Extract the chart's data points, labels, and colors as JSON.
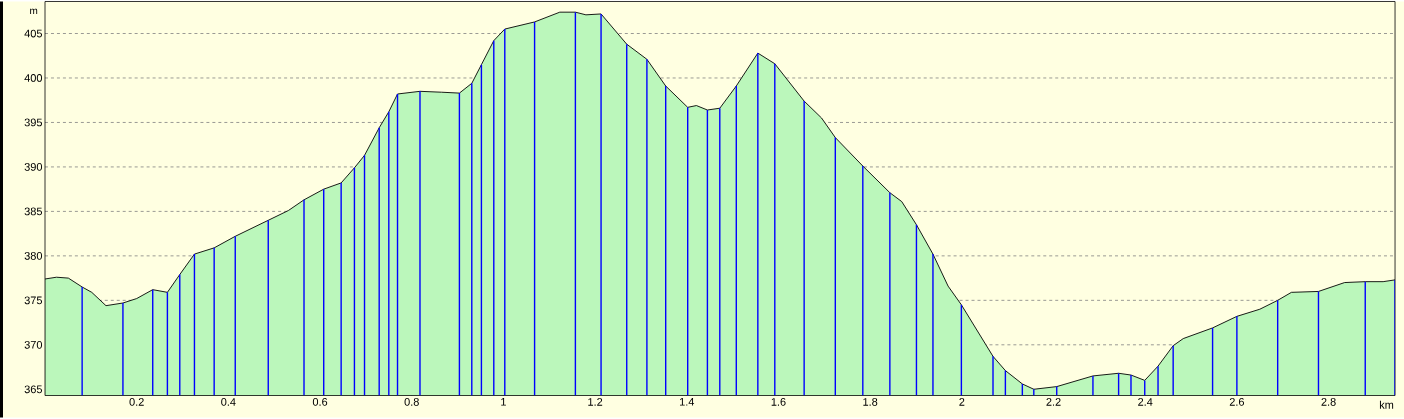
{
  "chart_data": {
    "type": "area",
    "xlabel": "km",
    "ylabel": "m",
    "xlim": [
      0,
      2.945
    ],
    "ylim": [
      364.3,
      408.6
    ],
    "xticks": [
      0.2,
      0.4,
      0.6,
      0.8,
      1,
      1.2,
      1.4,
      1.6,
      1.8,
      2,
      2.2,
      2.4,
      2.6,
      2.8
    ],
    "yticks": [
      365,
      370,
      375,
      380,
      385,
      390,
      395,
      400,
      405
    ],
    "grid": "y",
    "series": [
      {
        "color": "#bbf7bb",
        "x": [
          0,
          0.025,
          0.051,
          0.081,
          0.102,
          0.133,
          0.17,
          0.2,
          0.235,
          0.267,
          0.294,
          0.326,
          0.369,
          0.415,
          0.487,
          0.531,
          0.565,
          0.608,
          0.646,
          0.675,
          0.697,
          0.729,
          0.75,
          0.769,
          0.818,
          0.865,
          0.904,
          0.931,
          0.952,
          0.979,
          1.003,
          1.068,
          1.123,
          1.157,
          1.18,
          1.213,
          1.269,
          1.313,
          1.354,
          1.402,
          1.421,
          1.445,
          1.472,
          1.508,
          1.555,
          1.592,
          1.656,
          1.694,
          1.724,
          1.784,
          1.843,
          1.869,
          1.901,
          1.937,
          1.97,
          1.999,
          2.068,
          2.095,
          2.132,
          2.157,
          2.207,
          2.286,
          2.342,
          2.369,
          2.399,
          2.428,
          2.461,
          2.483,
          2.547,
          2.6,
          2.65,
          2.689,
          2.719,
          2.778,
          2.835,
          2.88,
          2.919,
          2.945
        ],
        "values": [
          377.4,
          377.6,
          377.5,
          376.5,
          375.9,
          374.4,
          374.7,
          375.2,
          376.2,
          375.9,
          377.9,
          380.2,
          380.9,
          382.2,
          384.0,
          385.1,
          386.3,
          387.5,
          388.2,
          389.9,
          391.3,
          394.4,
          396.2,
          398.2,
          398.5,
          398.4,
          398.3,
          399.4,
          401.5,
          404.2,
          405.5,
          406.3,
          407.4,
          407.4,
          407.1,
          407.2,
          403.8,
          402.1,
          399.1,
          396.7,
          396.9,
          396.4,
          396.6,
          399.1,
          402.8,
          401.6,
          397.4,
          395.5,
          393.3,
          390.1,
          387.1,
          386.1,
          383.5,
          380.2,
          376.6,
          374.5,
          368.7,
          367.1,
          365.6,
          365.0,
          365.3,
          366.5,
          366.8,
          366.6,
          366.0,
          367.6,
          369.9,
          370.7,
          371.9,
          373.2,
          374.0,
          375.0,
          375.9,
          376.0,
          377.0,
          377.1,
          377.1,
          377.3
        ]
      },
      {
        "type": "bar",
        "color": "#0000ff",
        "x": [
          0.081,
          0.17,
          0.235,
          0.267,
          0.294,
          0.326,
          0.369,
          0.415,
          0.487,
          0.565,
          0.608,
          0.646,
          0.675,
          0.697,
          0.729,
          0.75,
          0.769,
          0.818,
          0.904,
          0.931,
          0.952,
          0.979,
          1.003,
          1.068,
          1.157,
          1.213,
          1.269,
          1.313,
          1.354,
          1.402,
          1.445,
          1.472,
          1.508,
          1.555,
          1.592,
          1.656,
          1.724,
          1.784,
          1.843,
          1.901,
          1.937,
          1.999,
          2.068,
          2.095,
          2.132,
          2.157,
          2.207,
          2.286,
          2.342,
          2.369,
          2.399,
          2.428,
          2.461,
          2.547,
          2.6,
          2.689,
          2.778,
          2.88,
          2.945
        ],
        "values": [
          376.5,
          374.7,
          376.2,
          375.9,
          377.9,
          380.2,
          380.9,
          382.2,
          384.0,
          386.3,
          387.5,
          388.2,
          389.9,
          391.3,
          394.4,
          396.2,
          398.2,
          398.5,
          398.3,
          399.4,
          401.5,
          404.2,
          405.5,
          406.3,
          407.4,
          407.2,
          403.8,
          402.1,
          399.1,
          396.7,
          396.4,
          396.6,
          399.1,
          402.8,
          401.6,
          397.4,
          393.3,
          390.1,
          387.1,
          383.5,
          380.2,
          374.5,
          368.7,
          367.1,
          365.6,
          365.0,
          365.3,
          366.5,
          366.8,
          366.6,
          366.0,
          367.6,
          369.9,
          371.9,
          373.2,
          375.0,
          376.0,
          377.1,
          377.3
        ]
      }
    ]
  }
}
